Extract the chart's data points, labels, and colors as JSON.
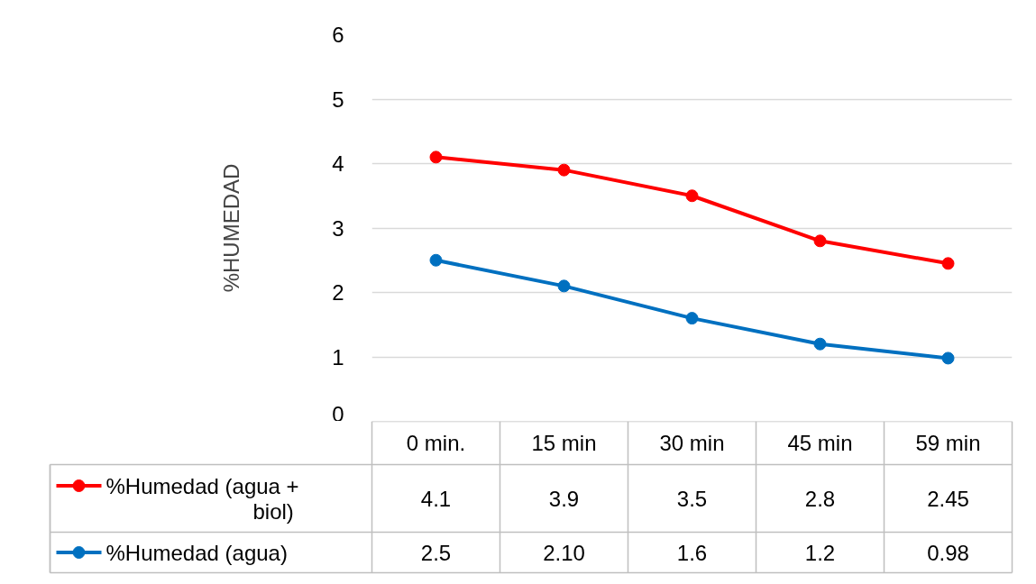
{
  "chart_data": {
    "type": "line",
    "ylabel": "%HUMEDAD",
    "categories": [
      "0 min.",
      "15 min",
      "30 min",
      "45 min",
      "59 min"
    ],
    "ylim": [
      0,
      6
    ],
    "yticks": [
      0,
      1,
      2,
      3,
      4,
      5,
      6
    ],
    "grid": "y",
    "legend": "bottom",
    "marker": "circle",
    "line_style": "solid",
    "series": [
      {
        "name": "%Humedad (agua + biol)",
        "color": "#ff0000",
        "values": [
          4.1,
          3.9,
          3.5,
          2.8,
          2.45
        ],
        "value_labels": [
          "4.1",
          "3.9",
          "3.5",
          "2.8",
          "2.45"
        ]
      },
      {
        "name": "%Humedad (agua)",
        "color": "#0070c0",
        "values": [
          2.5,
          2.1,
          1.6,
          1.2,
          0.98
        ],
        "value_labels": [
          "2.5",
          "2.10",
          "1.6",
          "1.2",
          "0.98"
        ]
      }
    ]
  }
}
